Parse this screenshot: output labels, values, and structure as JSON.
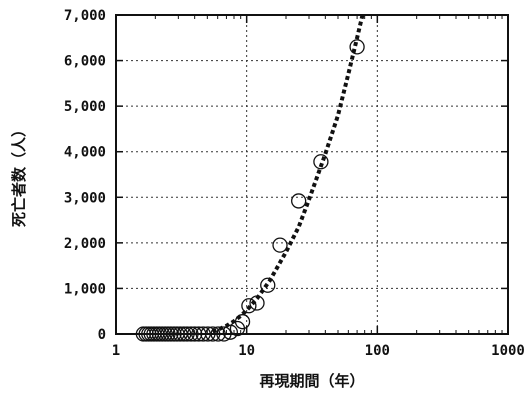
{
  "chart_data": {
    "type": "scatter",
    "title": "",
    "xlabel": "再現期間（年）",
    "ylabel": "死亡者数（人）",
    "x_scale": "log",
    "xlim": [
      1,
      1000
    ],
    "ylim": [
      0,
      7000
    ],
    "x_ticks": [
      1,
      10,
      100,
      1000
    ],
    "x_tick_labels": [
      "1",
      "10",
      "100",
      "1000"
    ],
    "y_ticks": [
      0,
      1000,
      2000,
      3000,
      4000,
      5000,
      6000,
      7000
    ],
    "y_tick_labels": [
      "0",
      "1,000",
      "2,000",
      "3,000",
      "4,000",
      "5,000",
      "6,000",
      "7,000"
    ],
    "grid": true,
    "series": [
      {
        "kind": "points",
        "marker": "open-circle",
        "points": [
          {
            "x": 1.62,
            "y": 0
          },
          {
            "x": 1.7,
            "y": 0
          },
          {
            "x": 1.78,
            "y": 0
          },
          {
            "x": 1.86,
            "y": 0
          },
          {
            "x": 1.95,
            "y": 0
          },
          {
            "x": 2.05,
            "y": 0
          },
          {
            "x": 2.15,
            "y": 0
          },
          {
            "x": 2.26,
            "y": 0
          },
          {
            "x": 2.38,
            "y": 0
          },
          {
            "x": 2.5,
            "y": 0
          },
          {
            "x": 2.63,
            "y": 0
          },
          {
            "x": 2.78,
            "y": 0
          },
          {
            "x": 2.93,
            "y": 0
          },
          {
            "x": 3.1,
            "y": 0
          },
          {
            "x": 3.3,
            "y": 0
          },
          {
            "x": 3.5,
            "y": 0
          },
          {
            "x": 3.75,
            "y": 0
          },
          {
            "x": 4.0,
            "y": 0
          },
          {
            "x": 4.3,
            "y": 0
          },
          {
            "x": 4.65,
            "y": 0
          },
          {
            "x": 5.05,
            "y": 0
          },
          {
            "x": 5.5,
            "y": 0
          },
          {
            "x": 6.05,
            "y": 0
          },
          {
            "x": 6.7,
            "y": 0
          },
          {
            "x": 7.5,
            "y": 40
          },
          {
            "x": 8.5,
            "y": 120
          },
          {
            "x": 9.3,
            "y": 270
          },
          {
            "x": 10.4,
            "y": 620
          },
          {
            "x": 12.0,
            "y": 680
          },
          {
            "x": 14.5,
            "y": 1070
          },
          {
            "x": 18.0,
            "y": 1950
          },
          {
            "x": 25.0,
            "y": 2920
          },
          {
            "x": 37.0,
            "y": 3780
          },
          {
            "x": 70.0,
            "y": 6300
          }
        ]
      },
      {
        "kind": "fit",
        "style": "dotted",
        "points": [
          {
            "x": 5.5,
            "y": 50
          },
          {
            "x": 6.0,
            "y": 95
          },
          {
            "x": 7.0,
            "y": 180
          },
          {
            "x": 8.0,
            "y": 280
          },
          {
            "x": 9.0,
            "y": 400
          },
          {
            "x": 10.0,
            "y": 520
          },
          {
            "x": 12.0,
            "y": 780
          },
          {
            "x": 15.0,
            "y": 1170
          },
          {
            "x": 20.0,
            "y": 1800
          },
          {
            "x": 25.0,
            "y": 2350
          },
          {
            "x": 30.0,
            "y": 2950
          },
          {
            "x": 40.0,
            "y": 3950
          },
          {
            "x": 50.0,
            "y": 4800
          },
          {
            "x": 60.0,
            "y": 5700
          },
          {
            "x": 70.0,
            "y": 6500
          },
          {
            "x": 77.0,
            "y": 7000
          }
        ]
      }
    ]
  }
}
